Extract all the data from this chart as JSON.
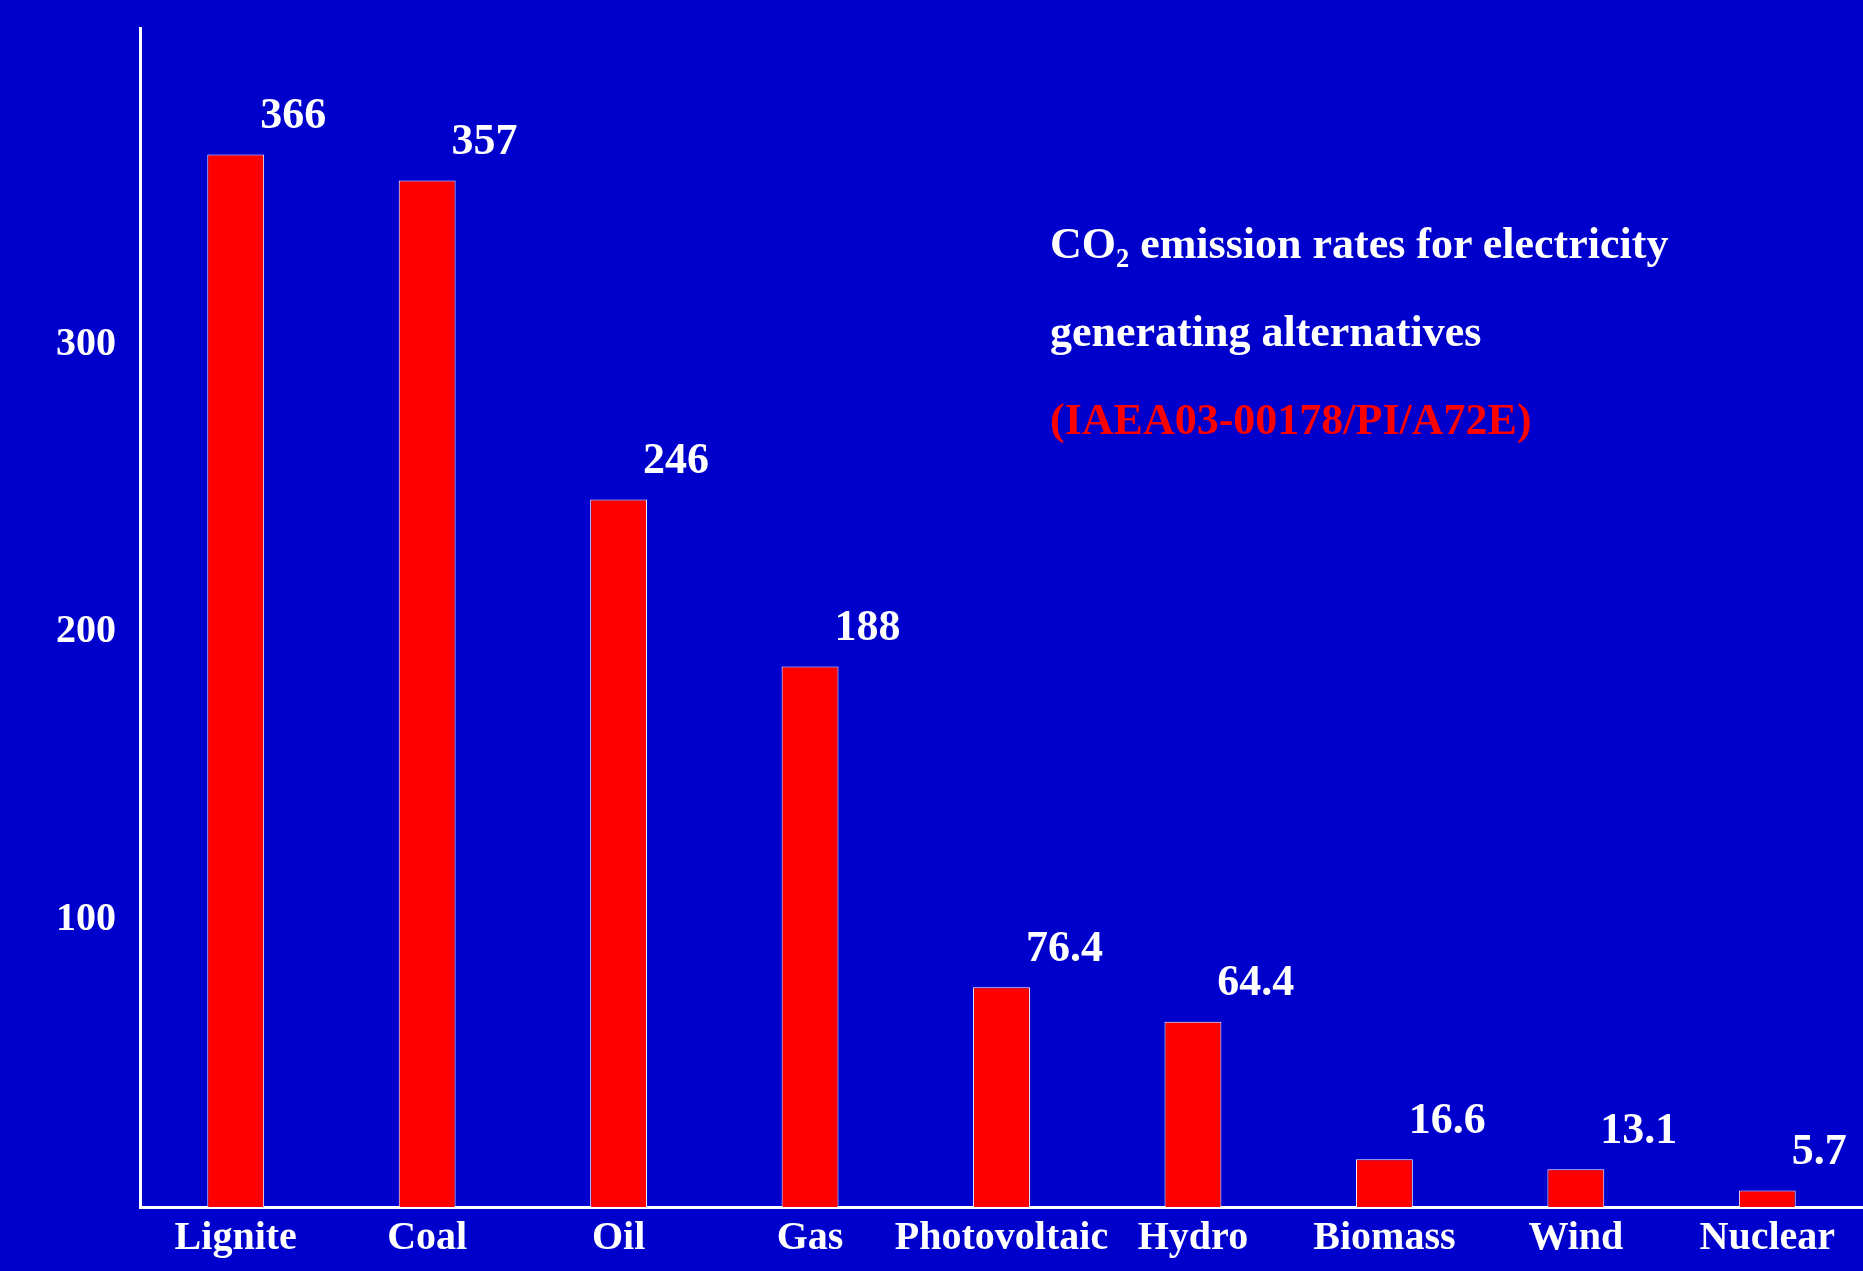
{
  "chart_data": {
    "type": "bar",
    "title": "CO₂ emission rates for electricity generating alternatives",
    "annotations": [
      "(IAEA03-00178/PI/A72E)"
    ],
    "categories": [
      "Lignite",
      "Coal",
      "Oil",
      "Gas",
      "Photovoltaic",
      "Hydro",
      "Biomass",
      "Wind",
      "Nuclear"
    ],
    "values": [
      366,
      357,
      246,
      188,
      76.4,
      64.4,
      16.6,
      13.1,
      5.7
    ],
    "color": "#ff0000",
    "ylim": [
      0,
      410
    ],
    "yticks": [
      100,
      200,
      300
    ],
    "grid": false,
    "data_labels": true
  }
}
